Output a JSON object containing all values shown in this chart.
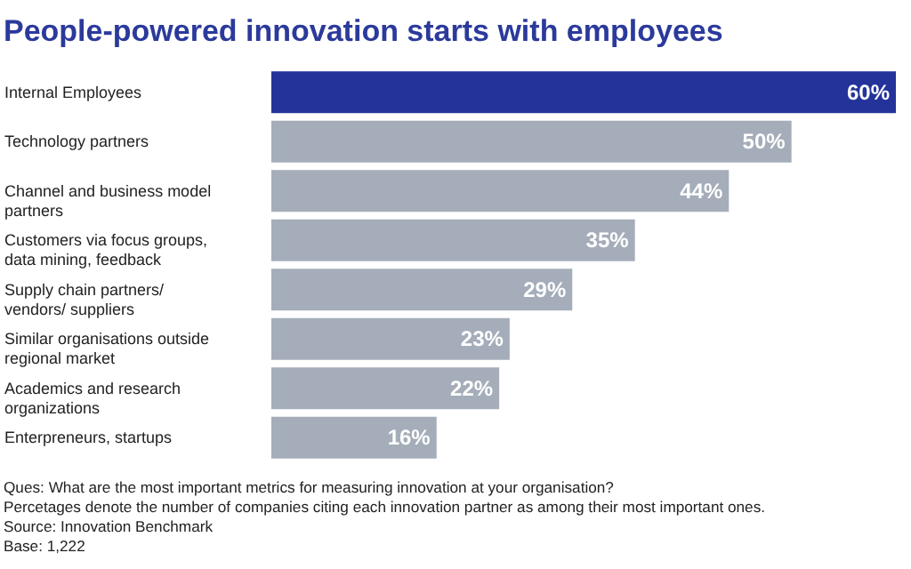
{
  "chart_data": {
    "type": "bar",
    "orientation": "horizontal",
    "title": "People-powered  innovation starts with employees",
    "categories": [
      "Internal Employees",
      "Technology partners",
      "Channel and business model partners",
      "Customers via focus groups, data mining, feedback",
      "Supply chain partners/ vendors/ suppliers",
      "Similar organisations outside regional market",
      "Academics and research organizations",
      "Enterpreneurs, startups"
    ],
    "values": [
      60,
      50,
      44,
      35,
      29,
      23,
      22,
      16
    ],
    "value_labels": [
      "60%",
      "50%",
      "44%",
      "35%",
      "29%",
      "23%",
      "22%",
      "16%"
    ],
    "colors": [
      "#24339a",
      "#a4adb9",
      "#a4adb9",
      "#a4adb9",
      "#a4adb9",
      "#a4adb9",
      "#a4adb9",
      "#a4adb9"
    ],
    "grid": false,
    "legend": false,
    "tick_labels": "y",
    "annotations": [
      "Ques: What are the most important metrics for measuring innovation at your organisation?",
      "Percetages denote the number of companies citing each innovation partner as among their most important ones.",
      "Source: Innovation Benchmark",
      "Base: 1,222"
    ]
  }
}
